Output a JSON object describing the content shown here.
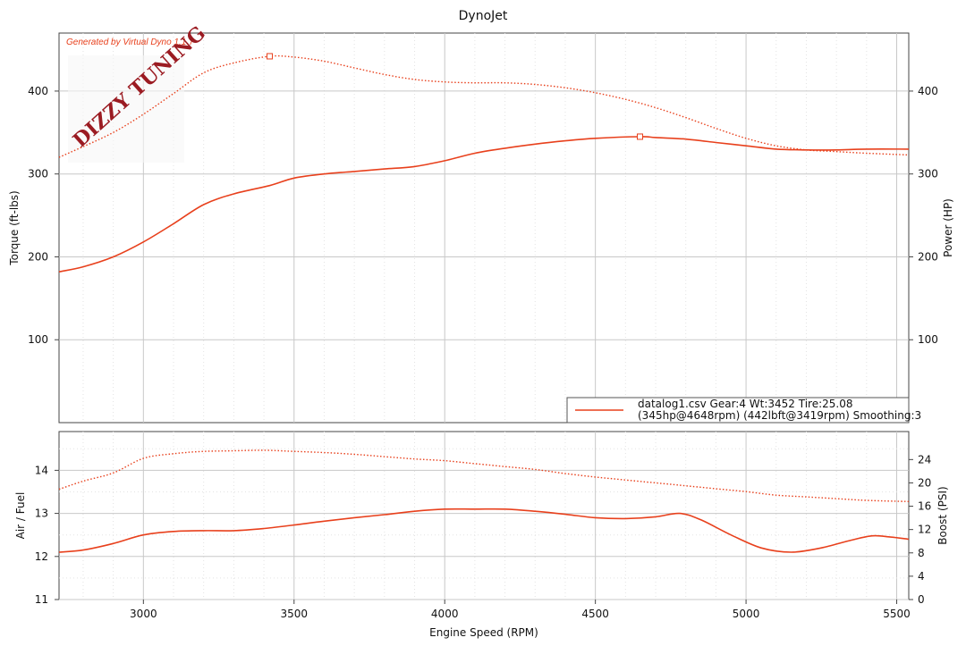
{
  "chart_data": [
    {
      "type": "line",
      "title": "DynoJet",
      "watermark_text": "Generated by Virtual Dyno 1.1.7",
      "logo_text": "DIZZY TUNING",
      "xlabel": "Engine Speed (RPM)",
      "ylabel": "Torque (ft-lbs)",
      "ylabel_right": "Power (HP)",
      "xlim": [
        2720,
        5540
      ],
      "ylim": [
        0,
        470
      ],
      "x_ticks": [
        3000,
        3500,
        4000,
        4500,
        5000,
        5500
      ],
      "y_ticks": [
        100,
        200,
        300,
        400
      ],
      "y_ticks_right": [
        100,
        200,
        300,
        400
      ],
      "grid": true,
      "legend": {
        "placement": "bottom-right",
        "line1": "datalog1.csv Gear:4 Wt:3452 Tire:25.08",
        "line2": "(345hp@4648rpm) (442lbft@3419rpm) Smoothing:3"
      },
      "colors": {
        "series": "#e8401c",
        "grid": "#c8c8c8",
        "frame": "#444444"
      },
      "series": [
        {
          "name": "Torque",
          "style": "dotted",
          "x": [
            2720,
            2800,
            2900,
            3000,
            3100,
            3200,
            3300,
            3419,
            3500,
            3600,
            3700,
            3800,
            3900,
            4000,
            4100,
            4200,
            4300,
            4400,
            4500,
            4600,
            4700,
            4800,
            4900,
            5000,
            5100,
            5200,
            5300,
            5400,
            5540
          ],
          "y": [
            320,
            333,
            350,
            372,
            397,
            422,
            434,
            442,
            441,
            436,
            428,
            420,
            414,
            411,
            410,
            410,
            408,
            404,
            398,
            390,
            380,
            368,
            355,
            343,
            334,
            329,
            327,
            325,
            323
          ],
          "peak": {
            "x": 3419,
            "y": 442
          }
        },
        {
          "name": "Power",
          "style": "solid",
          "x": [
            2720,
            2800,
            2900,
            3000,
            3100,
            3200,
            3300,
            3419,
            3500,
            3600,
            3700,
            3800,
            3900,
            4000,
            4100,
            4200,
            4300,
            4400,
            4500,
            4648,
            4700,
            4800,
            4900,
            5000,
            5100,
            5200,
            5300,
            5400,
            5540
          ],
          "y": [
            182,
            188,
            200,
            218,
            240,
            263,
            276,
            286,
            295,
            300,
            303,
            306,
            309,
            316,
            325,
            331,
            336,
            340,
            343,
            345,
            344,
            342,
            338,
            334,
            330,
            329,
            329,
            330,
            330
          ],
          "peak": {
            "x": 4648,
            "y": 345
          }
        }
      ]
    },
    {
      "type": "line",
      "xlabel": "Engine Speed (RPM)",
      "ylabel": "Air / Fuel",
      "ylabel_right": "Boost (PSI)",
      "xlim": [
        2720,
        5540
      ],
      "ylim": [
        11,
        14.9
      ],
      "ylim_right": [
        0,
        28.8
      ],
      "y_ticks": [
        11,
        12,
        13,
        14
      ],
      "y_ticks_right": [
        0,
        4,
        8,
        12,
        16,
        20,
        24
      ],
      "grid": true,
      "series": [
        {
          "name": "Air / Fuel",
          "style": "solid",
          "axis": "left",
          "x": [
            2720,
            2800,
            2900,
            3000,
            3100,
            3200,
            3300,
            3400,
            3500,
            3600,
            3700,
            3800,
            3900,
            4000,
            4100,
            4200,
            4300,
            4400,
            4500,
            4600,
            4700,
            4780,
            4850,
            4950,
            5050,
            5150,
            5250,
            5350,
            5420,
            5480,
            5540
          ],
          "y": [
            12.1,
            12.15,
            12.3,
            12.5,
            12.58,
            12.6,
            12.6,
            12.65,
            12.73,
            12.82,
            12.9,
            12.97,
            13.05,
            13.1,
            13.1,
            13.1,
            13.05,
            12.98,
            12.9,
            12.88,
            12.92,
            13.0,
            12.85,
            12.5,
            12.2,
            12.1,
            12.2,
            12.38,
            12.48,
            12.45,
            12.4
          ]
        },
        {
          "name": "Boost",
          "style": "dotted",
          "axis": "right",
          "x": [
            2720,
            2800,
            2900,
            3000,
            3100,
            3200,
            3300,
            3400,
            3500,
            3600,
            3700,
            3800,
            3900,
            4000,
            4100,
            4200,
            4300,
            4400,
            4500,
            4600,
            4700,
            4800,
            4900,
            5000,
            5100,
            5200,
            5300,
            5400,
            5540
          ],
          "y": [
            18.9,
            20.3,
            21.7,
            24.2,
            25.0,
            25.4,
            25.5,
            25.6,
            25.4,
            25.2,
            24.9,
            24.5,
            24.1,
            23.8,
            23.3,
            22.8,
            22.3,
            21.6,
            21.0,
            20.5,
            20.0,
            19.5,
            19.0,
            18.5,
            17.9,
            17.6,
            17.3,
            17.0,
            16.8
          ]
        }
      ]
    }
  ]
}
